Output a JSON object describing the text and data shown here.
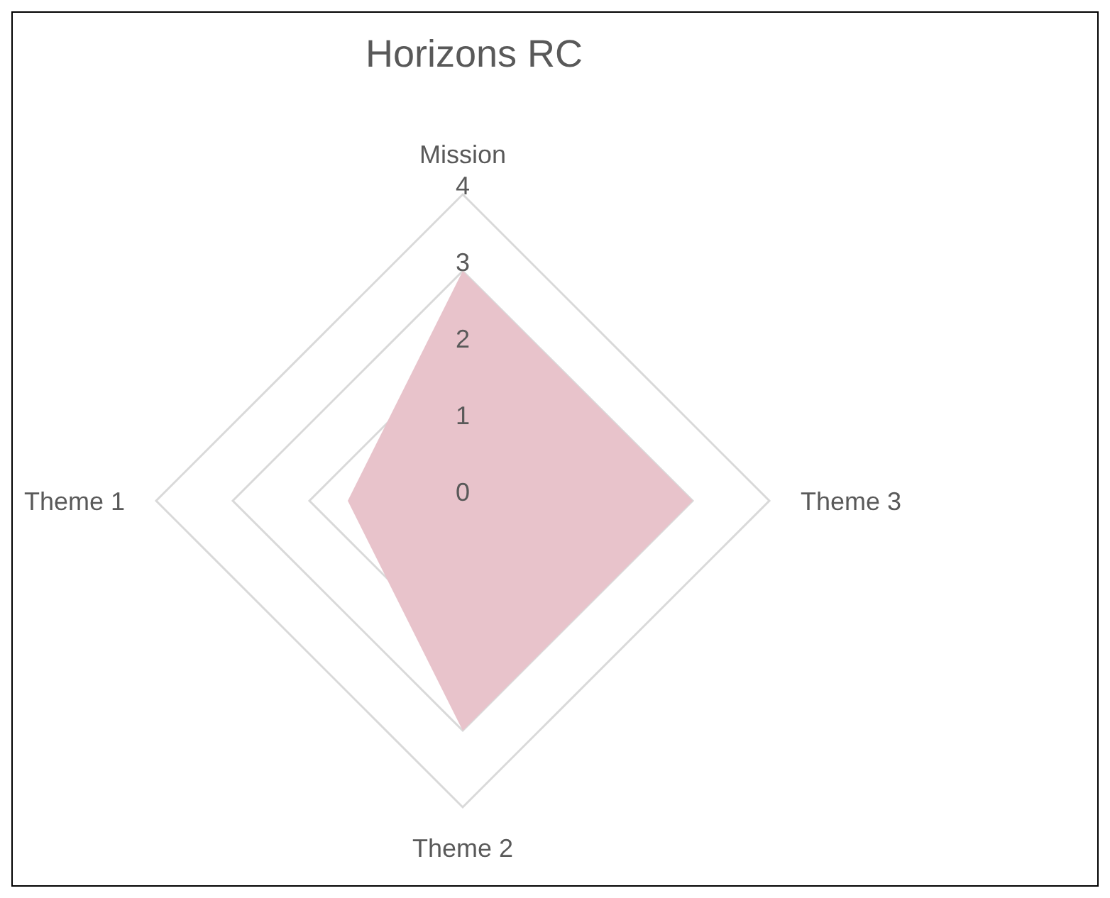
{
  "chart_data": {
    "type": "radar",
    "title": "Horizons RC",
    "categories": [
      "Mission",
      "Theme 3",
      "Theme 2",
      "Theme 1"
    ],
    "series": [
      {
        "color": "#e8c3cb",
        "values": [
          3,
          3,
          3,
          1.5
        ]
      }
    ],
    "ylim": [
      0,
      4
    ],
    "yticks": [
      0,
      1,
      2,
      3,
      4
    ],
    "grid": true
  }
}
